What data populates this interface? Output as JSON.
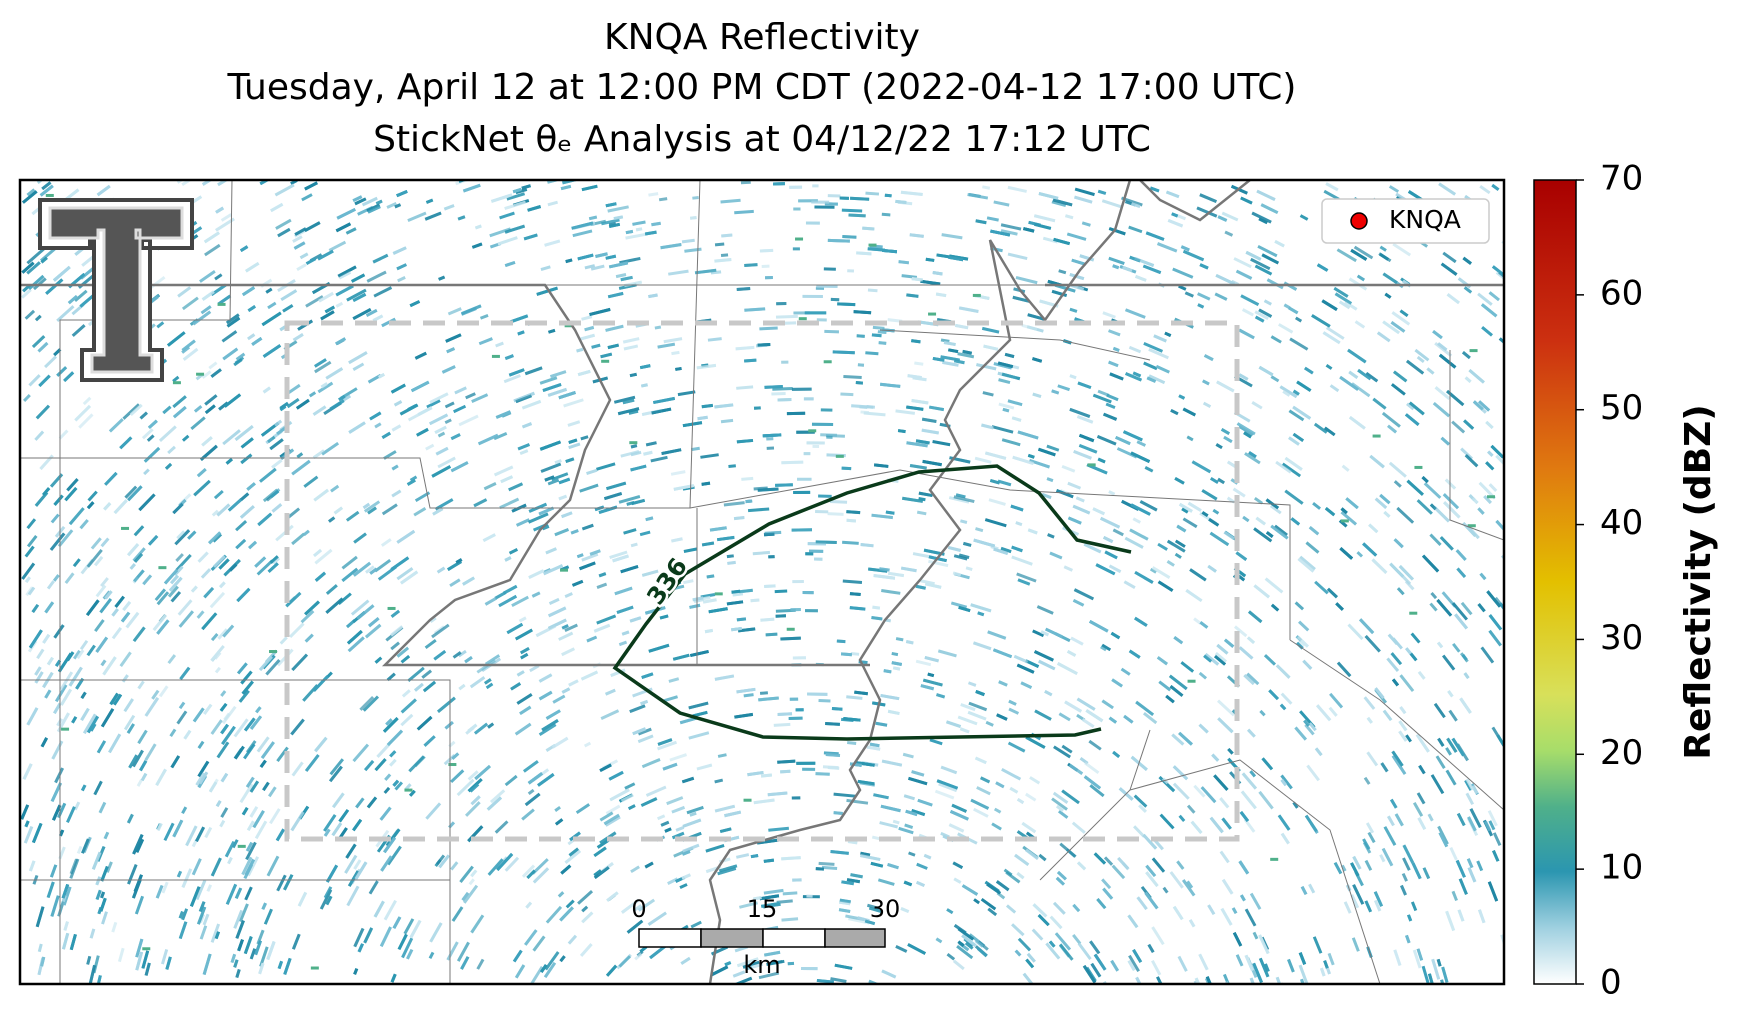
{
  "title": {
    "line1": "KNQA Reflectivity",
    "line2": "Tuesday, April 12 at 12:00 PM CDT (2022-04-12 17:00 UTC)",
    "line3": "StickNet θₑ Analysis at 04/12/22 17:12 UTC"
  },
  "legend": {
    "label": "KNQA"
  },
  "contour": {
    "label": "336"
  },
  "scale_bar": {
    "ticks": [
      0,
      15,
      30
    ],
    "unit": "km"
  },
  "colorbar": {
    "label": "Reflectivity (dBZ)",
    "lim": [
      0,
      70
    ],
    "ticks": [
      0,
      10,
      20,
      30,
      40,
      50,
      60,
      70
    ]
  }
}
